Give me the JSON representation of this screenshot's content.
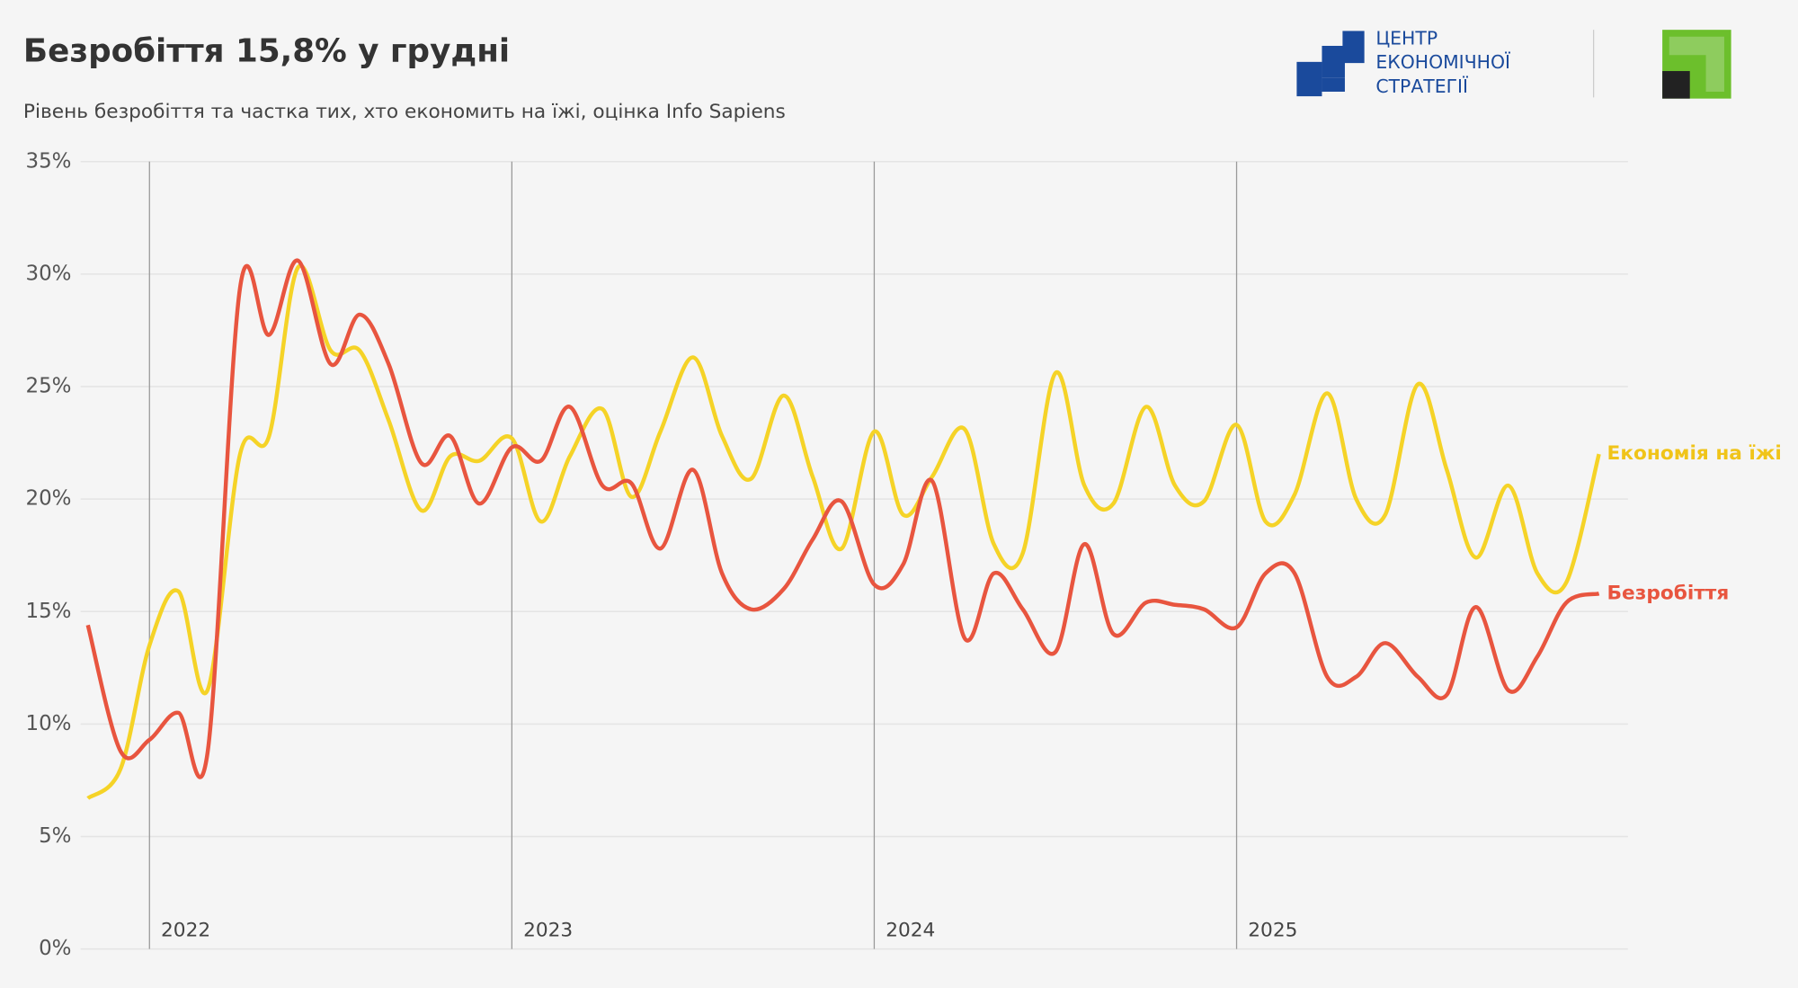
{
  "chart_data": {
    "type": "line",
    "title": "Безробіття 15,8% у грудні",
    "subtitle": "Рівень безробіття та частка тих, хто економить на їжі, оцінка Info Sapiens",
    "logo_text": [
      "ЦЕНТР",
      "ЕКОНОМІЧНОЇ",
      "СТРАТЕГІЇ"
    ],
    "x": [
      2021.83,
      2021.92,
      2022.0,
      2022.08,
      2022.16,
      2022.25,
      2022.33,
      2022.41,
      2022.5,
      2022.58,
      2022.66,
      2022.75,
      2022.83,
      2022.91,
      2023.0,
      2023.08,
      2023.16,
      2023.25,
      2023.33,
      2023.41,
      2023.5,
      2023.58,
      2023.66,
      2023.75,
      2023.83,
      2023.91,
      2024.0,
      2024.08,
      2024.16,
      2024.25,
      2024.33,
      2024.41,
      2024.5,
      2024.58,
      2024.66,
      2024.75,
      2024.83,
      2024.91,
      2025.0,
      2025.08,
      2025.16,
      2025.25,
      2025.33,
      2025.41,
      2025.5,
      2025.58,
      2025.66,
      2025.75,
      2025.83,
      2025.91,
      2026.0
    ],
    "series": [
      {
        "name": "Економія на їжі",
        "color": "#f5d327",
        "label_color": "#f0c419",
        "values": [
          6.7,
          8.0,
          13.5,
          15.9,
          11.5,
          22.0,
          22.8,
          30.3,
          26.6,
          26.6,
          23.5,
          19.5,
          21.9,
          21.7,
          22.7,
          19.0,
          21.9,
          24.0,
          20.1,
          23.0,
          26.3,
          22.8,
          20.9,
          24.6,
          21.0,
          17.8,
          23.0,
          19.3,
          21.0,
          23.1,
          18.0,
          17.6,
          25.6,
          20.6,
          19.8,
          24.1,
          20.6,
          19.9,
          23.3,
          19.0,
          20.2,
          24.7,
          20.0,
          19.3,
          25.1,
          21.3,
          17.4,
          20.6,
          16.7,
          16.3,
          22.0
        ]
      },
      {
        "name": "Безробіття",
        "color": "#e8553f",
        "label_color": "#e8553f",
        "values": [
          14.4,
          8.8,
          9.3,
          10.5,
          8.7,
          29.4,
          27.3,
          30.6,
          26.0,
          28.2,
          26.0,
          21.6,
          22.8,
          19.8,
          22.3,
          21.7,
          24.1,
          20.6,
          20.7,
          17.8,
          21.3,
          16.7,
          15.1,
          16.0,
          18.2,
          19.9,
          16.2,
          17.1,
          20.8,
          13.8,
          16.7,
          15.1,
          13.2,
          18.0,
          14.0,
          15.4,
          15.3,
          15.1,
          14.3,
          16.7,
          16.7,
          12.1,
          12.1,
          13.6,
          12.1,
          11.3,
          15.2,
          11.5,
          13.0,
          15.4,
          15.8
        ]
      }
    ],
    "xlim": [
      2021.81,
      2026.08
    ],
    "xticks": [
      2022,
      2023,
      2024,
      2025
    ],
    "ylim": [
      0,
      35
    ],
    "yticks": [
      {
        "value": 0,
        "label": "0%"
      },
      {
        "value": 5,
        "label": "5%"
      },
      {
        "value": 10,
        "label": "10%"
      },
      {
        "value": 15,
        "label": "15%"
      },
      {
        "value": 20,
        "label": "20%"
      },
      {
        "value": 25,
        "label": "25%"
      },
      {
        "value": 30,
        "label": "30%"
      },
      {
        "value": 35,
        "label": "35%"
      }
    ],
    "grid": true
  }
}
